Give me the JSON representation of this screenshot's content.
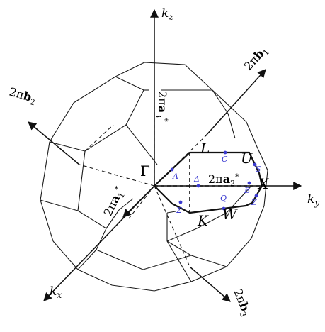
{
  "axes": {
    "kz": "k",
    "kz_sub": "z",
    "ky": "k",
    "ky_sub": "y",
    "kx": "k",
    "kx_sub": "x"
  },
  "vectors": {
    "b1_pre": "2π",
    "b1_main": "b",
    "b1_sub": "1",
    "b2_pre": "2π",
    "b2_main": "b",
    "b2_sub": "2",
    "b3_pre": "2π",
    "b3_main": "b",
    "b3_sub": "3",
    "a1_pre": "2π",
    "a1_main": "a",
    "a1_sub": "1",
    "a1_sup": "*",
    "a2_pre": "2π",
    "a2_main": "a",
    "a2_sub": "2",
    "a2_sup": "*",
    "a3_pre": "2π",
    "a3_main": "a",
    "a3_sub": "3",
    "a3_sup": "*"
  },
  "points": {
    "gamma": "Γ",
    "L": "L",
    "U": "U",
    "X": "X",
    "W": "W",
    "K": "K"
  },
  "lines": {
    "lambda": "Λ",
    "delta": "Δ",
    "sigma": "Σ",
    "C": "C",
    "S": "S",
    "B": "B",
    "Q": "Q",
    "Z": "Z"
  }
}
